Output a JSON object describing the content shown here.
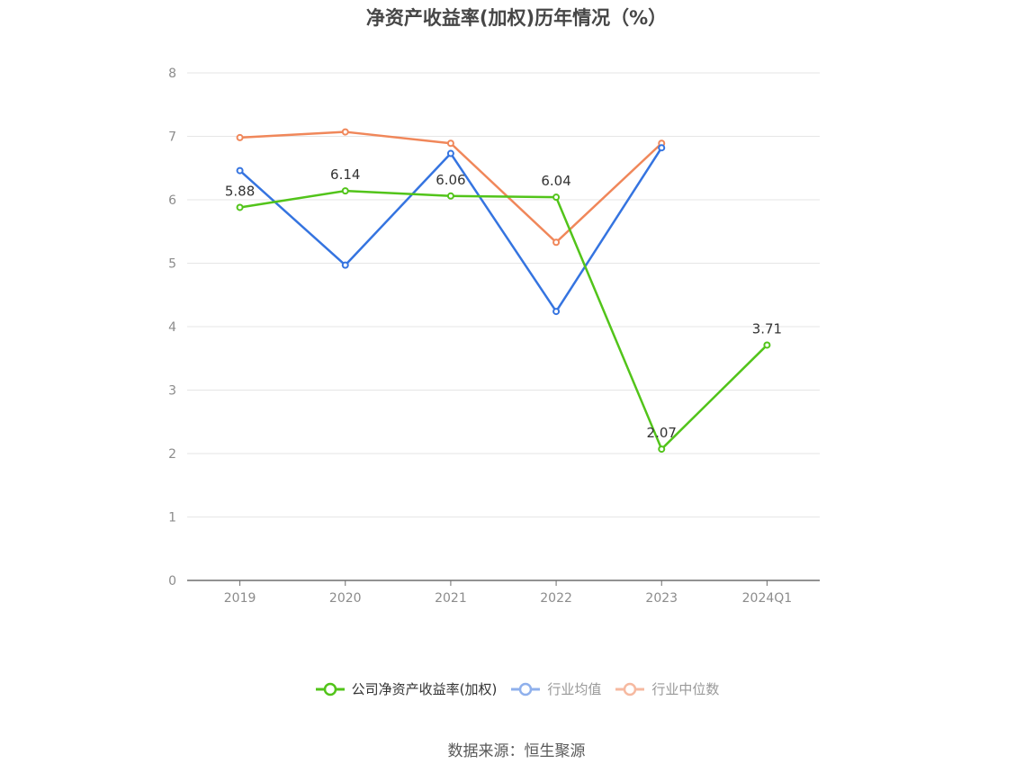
{
  "chart_data": {
    "type": "line",
    "title": "净资产收益率(加权)历年情况（%）",
    "categories": [
      "2019",
      "2020",
      "2021",
      "2022",
      "2023",
      "2024Q1"
    ],
    "ylim": [
      0,
      8
    ],
    "yticks": [
      0,
      1,
      2,
      3,
      4,
      5,
      6,
      7,
      8
    ],
    "grid": true,
    "legend_position": "bottom",
    "series": [
      {
        "name": "公司净资产收益率(加权)",
        "color": "#52c41a",
        "values": [
          5.88,
          6.14,
          6.06,
          6.04,
          2.07,
          3.71
        ],
        "labels": [
          "5.88",
          "6.14",
          "6.06",
          "6.04",
          "2.07",
          "3.71"
        ]
      },
      {
        "name": "行业均值",
        "color": "#3574e0",
        "values": [
          6.46,
          4.97,
          6.73,
          4.24,
          6.82,
          null
        ]
      },
      {
        "name": "行业中位数",
        "color": "#f0875a",
        "values": [
          6.98,
          7.07,
          6.89,
          5.33,
          6.89,
          null
        ]
      }
    ],
    "legend_colors": [
      "#52c41a",
      "#8fb0ec",
      "#f6b9a0"
    ],
    "legend_text_colors": [
      "#333333",
      "#999999",
      "#999999"
    ]
  },
  "source": "数据来源：恒生聚源"
}
